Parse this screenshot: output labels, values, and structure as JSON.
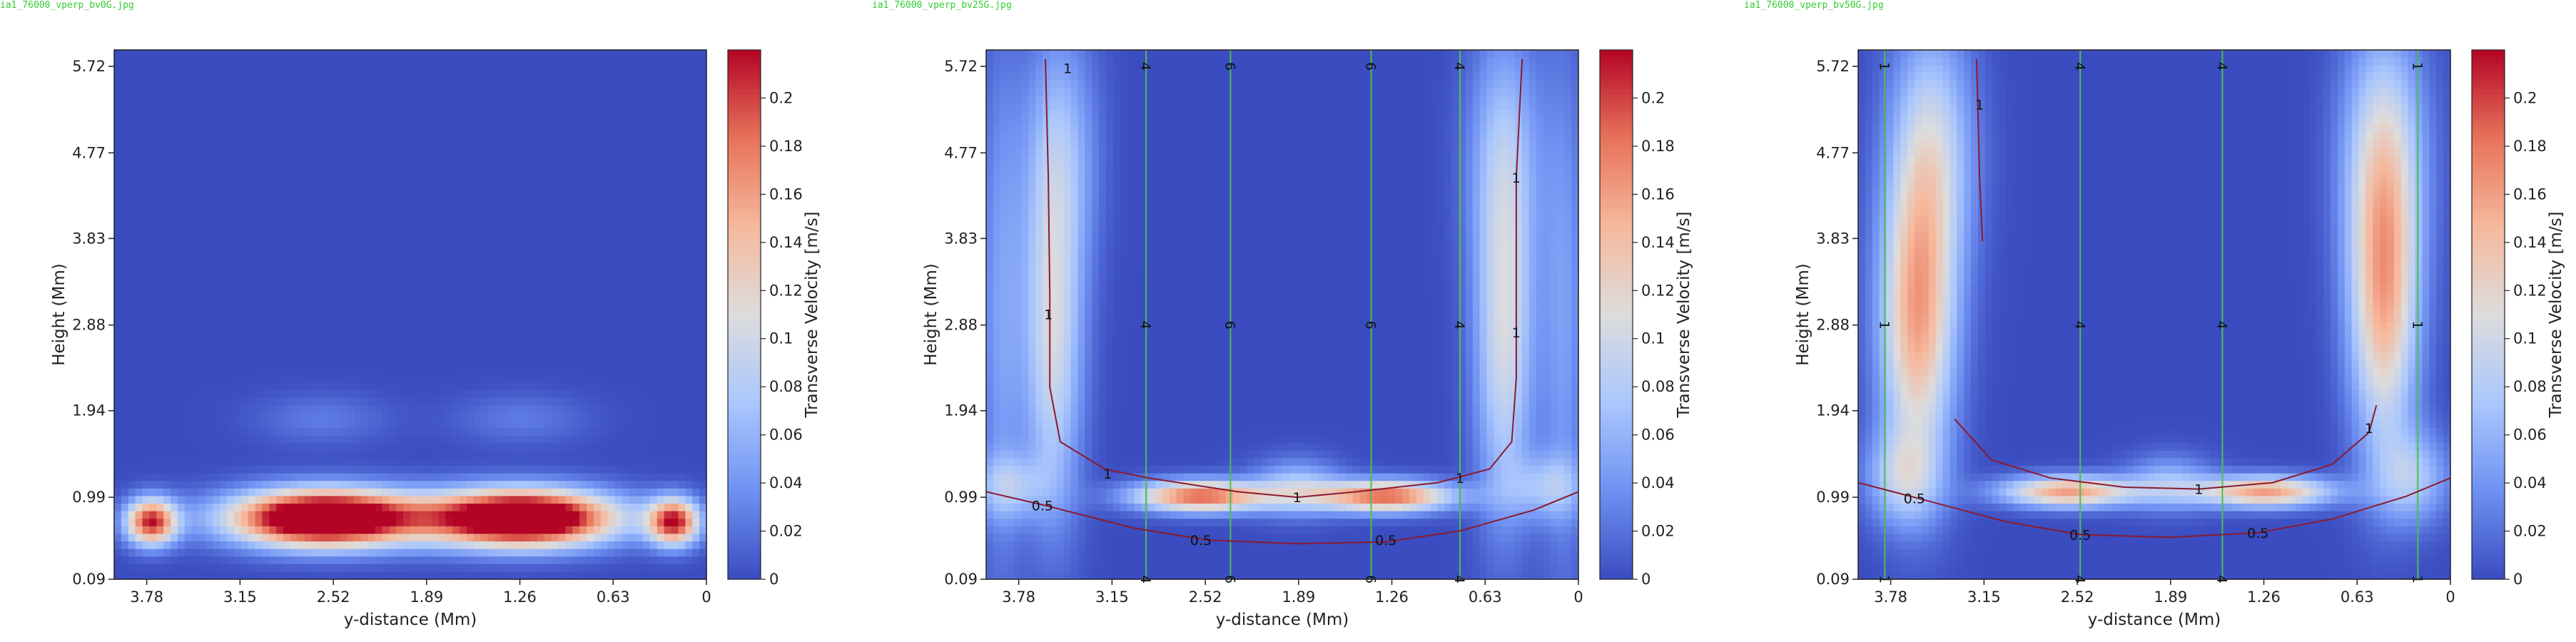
{
  "colors": {
    "colormap": [
      "#3a4cc0",
      "#6f91f2",
      "#aac7fd",
      "#dddcdc",
      "#f6b89c",
      "#e7735a",
      "#b40426"
    ],
    "contour_line": "#8b1a2e",
    "vertical_line": "#4dbf4d",
    "frame": "#222222"
  },
  "chart_data": [
    {
      "type": "heatmap",
      "filename": "ia1_76000_vperp_bv0G.jpg",
      "title": "",
      "xlabel": "y-distance (Mm)",
      "ylabel": "Height (Mm)",
      "xlim": [
        4.0,
        0
      ],
      "ylim": [
        0.09,
        5.9
      ],
      "x_ticks": [
        "3.78",
        "3.15",
        "2.52",
        "1.89",
        "1.26",
        "0.63",
        "0"
      ],
      "y_ticks": [
        "0.09",
        "0.99",
        "1.94",
        "2.88",
        "3.83",
        "4.77",
        "5.72"
      ],
      "colorbar": {
        "label": "Transverse Velocity [m/s]",
        "range": [
          0,
          0.22
        ],
        "ticks": [
          "0",
          "0.02",
          "0.04",
          "0.06",
          "0.08",
          "0.1",
          "0.12",
          "0.14",
          "0.16",
          "0.18",
          "0.2"
        ]
      },
      "blobs": [
        {
          "y": 3.75,
          "z": 0.72,
          "w": 0.17,
          "h": 0.25,
          "v": 0.21
        },
        {
          "y": 2.58,
          "z": 0.76,
          "w": 0.62,
          "h": 0.3,
          "v": 0.32
        },
        {
          "y": 1.25,
          "z": 0.76,
          "w": 0.62,
          "h": 0.3,
          "v": 0.32
        },
        {
          "y": 0.22,
          "z": 0.72,
          "w": 0.17,
          "h": 0.25,
          "v": 0.21
        },
        {
          "y": 2.6,
          "z": 1.85,
          "w": 0.45,
          "h": 0.28,
          "v": 0.025
        },
        {
          "y": 1.25,
          "z": 1.85,
          "w": 0.45,
          "h": 0.28,
          "v": 0.025
        }
      ],
      "contours": [],
      "vlines": []
    },
    {
      "type": "heatmap",
      "filename": "ia1_76000_vperp_bv25G.jpg",
      "title": "",
      "xlabel": "y-distance (Mm)",
      "ylabel": "Height (Mm)",
      "xlim": [
        4.0,
        0
      ],
      "ylim": [
        0.09,
        5.9
      ],
      "x_ticks": [
        "3.78",
        "3.15",
        "2.52",
        "1.89",
        "1.26",
        "0.63",
        "0"
      ],
      "y_ticks": [
        "0.09",
        "0.99",
        "1.94",
        "2.88",
        "3.83",
        "4.77",
        "5.72"
      ],
      "colorbar": {
        "label": "Transverse Velocity [m/s]",
        "range": [
          0,
          0.22
        ],
        "ticks": [
          "0",
          "0.02",
          "0.04",
          "0.06",
          "0.08",
          "0.1",
          "0.12",
          "0.14",
          "0.16",
          "0.18",
          "0.2"
        ]
      },
      "blobs": [
        {
          "y": 2.55,
          "z": 1.0,
          "w": 0.45,
          "h": 0.17,
          "v": 0.19
        },
        {
          "y": 1.3,
          "z": 1.0,
          "w": 0.45,
          "h": 0.17,
          "v": 0.19
        },
        {
          "y": 3.55,
          "z": 2.7,
          "w": 0.2,
          "h": 1.9,
          "v": 0.1
        },
        {
          "y": 0.5,
          "z": 2.7,
          "w": 0.2,
          "h": 1.9,
          "v": 0.1
        },
        {
          "y": 3.5,
          "z": 4.8,
          "w": 0.25,
          "h": 1.4,
          "v": 0.06
        },
        {
          "y": 0.5,
          "z": 4.8,
          "w": 0.25,
          "h": 1.4,
          "v": 0.06
        },
        {
          "y": 1.9,
          "z": 1.1,
          "w": 0.3,
          "h": 0.3,
          "v": 0.07
        },
        {
          "y": 3.85,
          "z": 1.1,
          "w": 0.25,
          "h": 0.35,
          "v": 0.06
        },
        {
          "y": 0.2,
          "z": 1.1,
          "w": 0.25,
          "h": 0.35,
          "v": 0.06
        },
        {
          "y": 3.9,
          "z": 3.0,
          "w": 0.15,
          "h": 3.0,
          "v": 0.045
        },
        {
          "y": 0.1,
          "z": 3.0,
          "w": 0.15,
          "h": 3.0,
          "v": 0.045
        }
      ],
      "contours": [
        {
          "label": "1",
          "points": [
            [
              3.6,
              5.8
            ],
            [
              3.58,
              4.5
            ],
            [
              3.57,
              3.2
            ],
            [
              3.57,
              2.2
            ],
            [
              3.5,
              1.6
            ],
            [
              3.2,
              1.3
            ],
            [
              2.9,
              1.2
            ],
            [
              2.3,
              1.05
            ],
            [
              1.9,
              0.99
            ],
            [
              1.5,
              1.05
            ],
            [
              0.95,
              1.15
            ],
            [
              0.6,
              1.3
            ],
            [
              0.45,
              1.6
            ],
            [
              0.42,
              2.3
            ],
            [
              0.42,
              3.5
            ],
            [
              0.42,
              4.5
            ],
            [
              0.38,
              5.8
            ]
          ],
          "labels": [
            [
              3.58,
              3.0
            ],
            [
              3.45,
              5.7
            ],
            [
              3.18,
              1.25
            ],
            [
              1.9,
              0.99
            ],
            [
              0.8,
              1.2
            ],
            [
              0.42,
              2.8
            ],
            [
              0.42,
              4.5
            ]
          ]
        },
        {
          "label": "0.5",
          "points": [
            [
              4.0,
              1.05
            ],
            [
              3.6,
              0.9
            ],
            [
              3.0,
              0.65
            ],
            [
              2.5,
              0.52
            ],
            [
              1.9,
              0.48
            ],
            [
              1.3,
              0.5
            ],
            [
              0.8,
              0.62
            ],
            [
              0.3,
              0.85
            ],
            [
              0.0,
              1.05
            ]
          ],
          "labels": [
            [
              3.62,
              0.9
            ],
            [
              2.55,
              0.52
            ],
            [
              1.3,
              0.52
            ]
          ]
        }
      ],
      "vlines": [
        {
          "y": 2.92,
          "label": "4"
        },
        {
          "y": 2.35,
          "label": "6"
        },
        {
          "y": 1.4,
          "label": "6"
        },
        {
          "y": 0.8,
          "label": "4"
        }
      ],
      "vline_labels_at": [
        5.72,
        2.88,
        0.09
      ]
    },
    {
      "type": "heatmap",
      "filename": "ia1_76000_vperp_bv50G.jpg",
      "title": "",
      "xlabel": "y-distance (Mm)",
      "ylabel": "Height (Mm)",
      "xlim": [
        4.0,
        0
      ],
      "ylim": [
        0.09,
        5.9
      ],
      "x_ticks": [
        "3.78",
        "3.15",
        "2.52",
        "1.89",
        "1.26",
        "0.63",
        "0"
      ],
      "y_ticks": [
        "0.09",
        "0.99",
        "1.94",
        "2.88",
        "3.83",
        "4.77",
        "5.72"
      ],
      "colorbar": {
        "label": "Transverse Velocity [m/s]",
        "range": [
          0,
          0.22
        ],
        "ticks": [
          "0",
          "0.02",
          "0.04",
          "0.06",
          "0.08",
          "0.1",
          "0.12",
          "0.14",
          "0.16",
          "0.18",
          "0.2"
        ]
      },
      "blobs": [
        {
          "y": 2.58,
          "z": 1.05,
          "w": 0.45,
          "h": 0.17,
          "v": 0.16
        },
        {
          "y": 1.25,
          "z": 1.05,
          "w": 0.45,
          "h": 0.17,
          "v": 0.16
        },
        {
          "y": 3.6,
          "z": 2.9,
          "w": 0.25,
          "h": 1.6,
          "v": 0.15
        },
        {
          "y": 0.45,
          "z": 3.1,
          "w": 0.23,
          "h": 1.6,
          "v": 0.14
        },
        {
          "y": 3.5,
          "z": 4.8,
          "w": 0.28,
          "h": 1.4,
          "v": 0.09
        },
        {
          "y": 0.45,
          "z": 4.8,
          "w": 0.28,
          "h": 1.4,
          "v": 0.09
        },
        {
          "y": 3.7,
          "z": 1.2,
          "w": 0.25,
          "h": 0.5,
          "v": 0.07
        },
        {
          "y": 0.25,
          "z": 1.2,
          "w": 0.25,
          "h": 0.5,
          "v": 0.07
        },
        {
          "y": 1.9,
          "z": 1.15,
          "w": 0.3,
          "h": 0.3,
          "v": 0.06
        }
      ],
      "contours": [
        {
          "label": "1",
          "points": [
            [
              3.2,
              5.8
            ],
            [
              3.18,
              4.5
            ],
            [
              3.16,
              3.8
            ]
          ],
          "labels": [
            [
              3.18,
              5.3
            ]
          ]
        },
        {
          "label": "1",
          "points": [
            [
              3.35,
              1.85
            ],
            [
              3.1,
              1.4
            ],
            [
              2.7,
              1.2
            ],
            [
              2.2,
              1.1
            ],
            [
              1.7,
              1.08
            ],
            [
              1.2,
              1.15
            ],
            [
              0.8,
              1.35
            ],
            [
              0.55,
              1.7
            ],
            [
              0.5,
              2.0
            ]
          ],
          "labels": [
            [
              0.55,
              1.75
            ],
            [
              1.7,
              1.08
            ]
          ]
        },
        {
          "label": "0.5",
          "points": [
            [
              4.0,
              1.15
            ],
            [
              3.6,
              0.98
            ],
            [
              3.0,
              0.72
            ],
            [
              2.5,
              0.58
            ],
            [
              1.9,
              0.55
            ],
            [
              1.3,
              0.6
            ],
            [
              0.8,
              0.75
            ],
            [
              0.3,
              1.0
            ],
            [
              0.0,
              1.2
            ]
          ],
          "labels": [
            [
              3.62,
              0.98
            ],
            [
              2.5,
              0.58
            ],
            [
              1.3,
              0.6
            ]
          ]
        }
      ],
      "vlines": [
        {
          "y": 3.82,
          "label": "1"
        },
        {
          "y": 2.5,
          "label": "4"
        },
        {
          "y": 1.54,
          "label": "4"
        },
        {
          "y": 0.22,
          "label": "1"
        }
      ],
      "vline_labels_at": [
        5.72,
        2.88,
        0.09
      ]
    }
  ]
}
